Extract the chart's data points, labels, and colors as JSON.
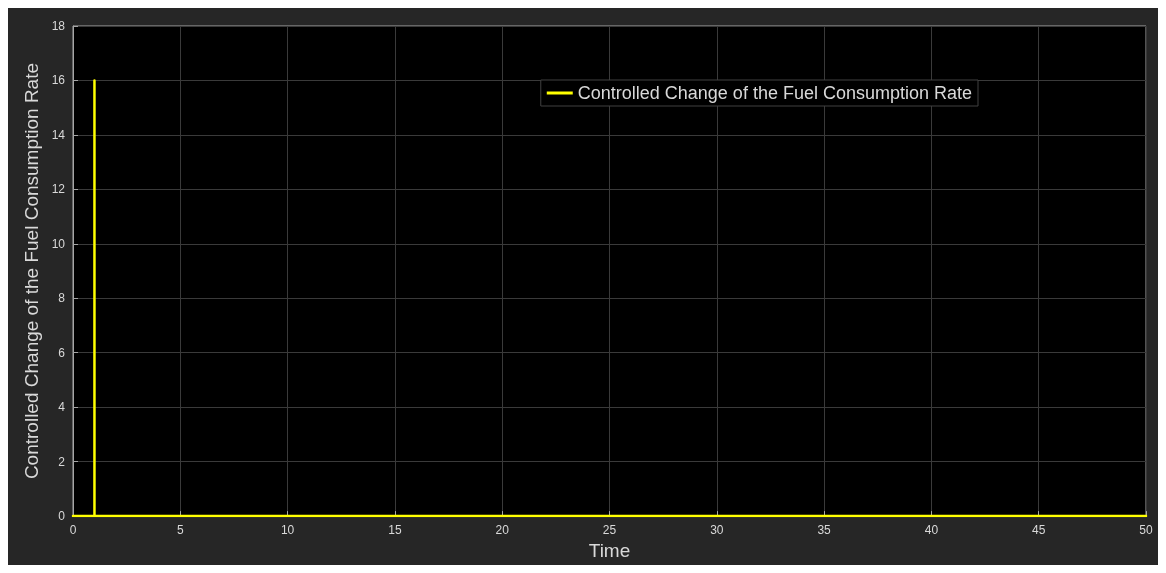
{
  "chart_data": {
    "type": "line",
    "xlabel": "Time",
    "ylabel": "Controlled Change of the Fuel Consumption Rate",
    "x": [
      0,
      1,
      1,
      1,
      50
    ],
    "series": [
      {
        "name": "Controlled Change of the Fuel Consumption Rate",
        "color": "#ffff00",
        "values": [
          0,
          0,
          16,
          0,
          0
        ]
      }
    ],
    "xlim": [
      0,
      50
    ],
    "xticks": [
      0,
      5,
      10,
      15,
      20,
      25,
      30,
      35,
      40,
      45,
      50
    ],
    "ylim": [
      0,
      18
    ],
    "yticks": [
      0,
      2,
      4,
      6,
      8,
      10,
      12,
      14,
      16,
      18
    ],
    "grid": true,
    "legend": "top right",
    "marker": "none",
    "line_style": "solid"
  }
}
